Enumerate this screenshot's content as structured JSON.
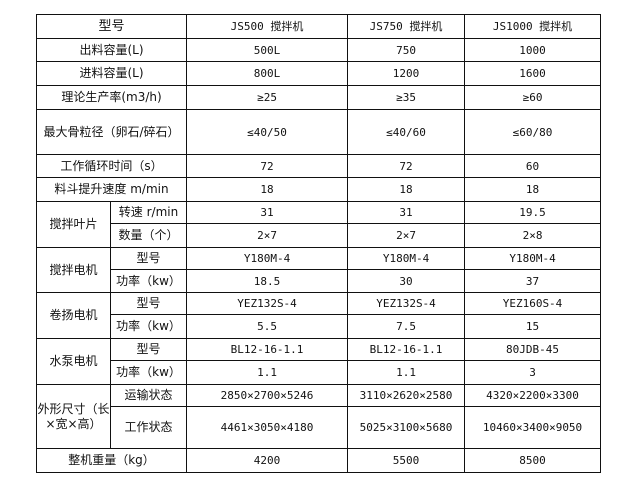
{
  "header": {
    "label": "型号",
    "models": [
      "JS500 搅拌机",
      "JS750 搅拌机",
      "JS1000 搅拌机"
    ]
  },
  "rows": [
    {
      "label": "出料容量(L)",
      "values": [
        "500L",
        "750",
        "1000"
      ]
    },
    {
      "label": "进料容量(L)",
      "values": [
        "800L",
        "1200",
        "1600"
      ]
    },
    {
      "label": "理论生产率(m3/h)",
      "values": [
        "≥25",
        "≥35",
        "≥60"
      ]
    },
    {
      "label": "最大骨粒径（卵石/碎石）",
      "values": [
        "≤40/50",
        "≤40/60",
        "≤60/80"
      ]
    },
    {
      "label": "工作循环时间（s）",
      "values": [
        "72",
        "72",
        "60"
      ]
    },
    {
      "label": "料斗提升速度 m/min",
      "values": [
        "18",
        "18",
        "18"
      ]
    }
  ],
  "groups": [
    {
      "label": "搅拌叶片",
      "sub": [
        {
          "label": "转速 r/min",
          "values": [
            "31",
            "31",
            "19.5"
          ]
        },
        {
          "label": "数量（个）",
          "values": [
            "2×7",
            "2×7",
            "2×8"
          ]
        }
      ]
    },
    {
      "label": "搅拌电机",
      "sub": [
        {
          "label": "型号",
          "values": [
            "Y180M-4",
            "Y180M-4",
            "Y180M-4"
          ]
        },
        {
          "label": "功率（kw）",
          "values": [
            "18.5",
            "30",
            "37"
          ]
        }
      ]
    },
    {
      "label": "卷扬电机",
      "sub": [
        {
          "label": "型号",
          "values": [
            "YEZ132S-4",
            "YEZ132S-4",
            "YEZ160S-4"
          ]
        },
        {
          "label": "功率（kw）",
          "values": [
            "5.5",
            "7.5",
            "15"
          ]
        }
      ]
    },
    {
      "label": "水泵电机",
      "sub": [
        {
          "label": "型号",
          "values": [
            "BL12-16-1.1",
            "BL12-16-1.1",
            "80JDB-45"
          ]
        },
        {
          "label": "功率（kw）",
          "values": [
            "1.1",
            "1.1",
            "3"
          ]
        }
      ]
    },
    {
      "label": "外形尺寸（长×宽×高）",
      "sub": [
        {
          "label": "运输状态",
          "values": [
            "2850×2700×5246",
            "3110×2620×2580",
            "4320×2200×3300"
          ]
        },
        {
          "label": "工作状态",
          "values": [
            "4461×3050×4180",
            "5025×3100×5680",
            "10460×3400×9050"
          ]
        }
      ]
    }
  ],
  "footer": {
    "label": "整机重量（kg）",
    "values": [
      "4200",
      "5500",
      "8500"
    ]
  }
}
